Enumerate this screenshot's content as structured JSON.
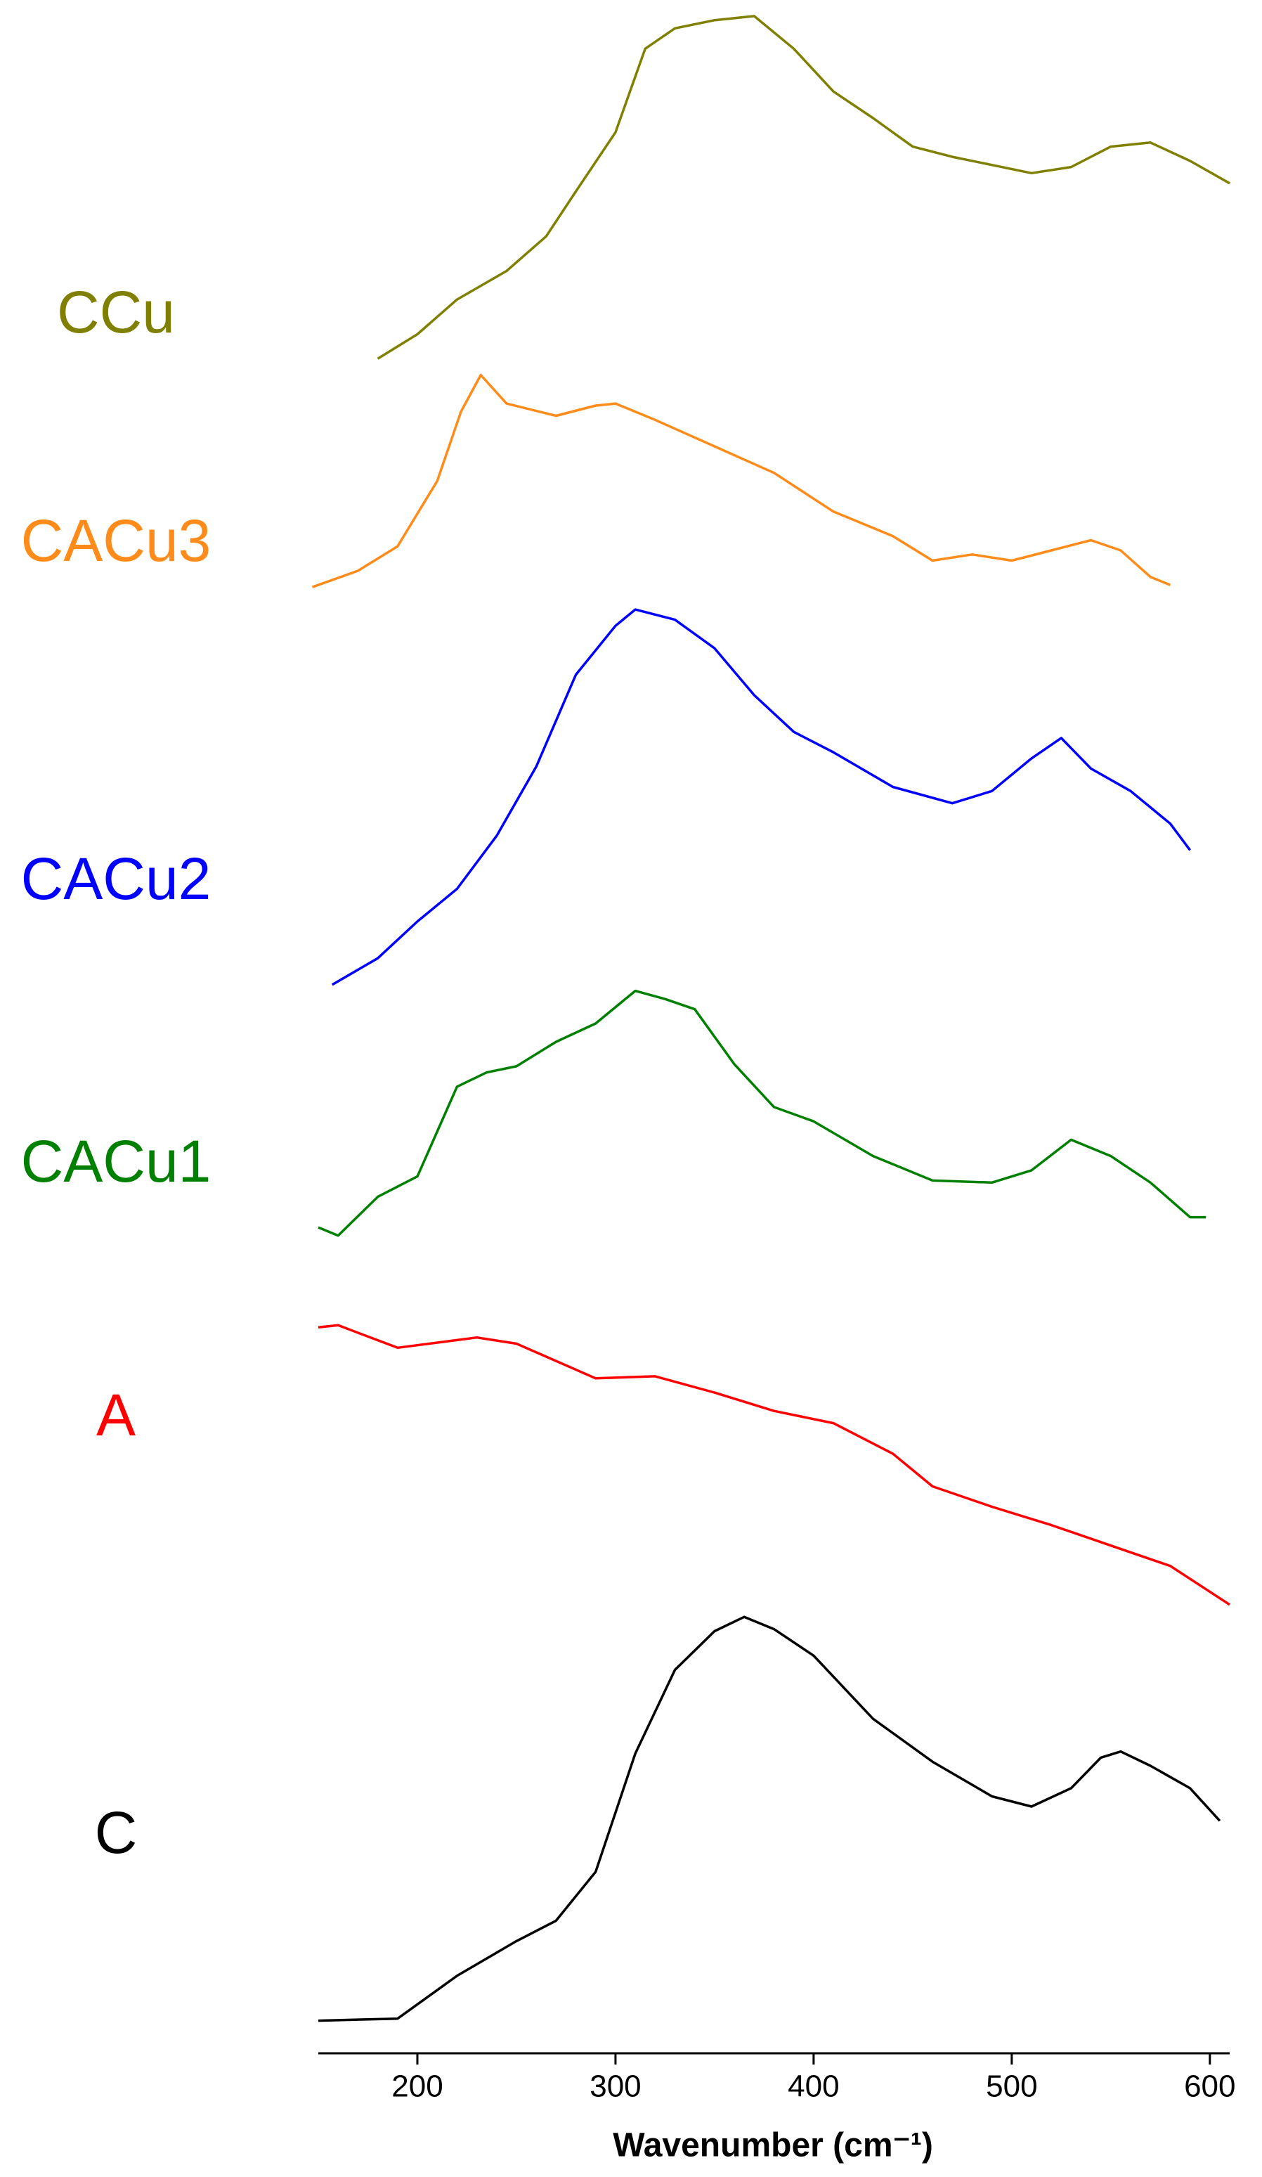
{
  "chart_data": {
    "type": "line",
    "x_label": "Wavenumber (cm⁻¹)",
    "xlim": [
      150,
      610
    ],
    "xticks": [
      200,
      300,
      400,
      500,
      600
    ],
    "ylim": [
      0,
      100
    ],
    "series": [
      {
        "name": "C",
        "color": "#000000",
        "x": [
          150,
          190,
          220,
          250,
          270,
          290,
          310,
          330,
          350,
          365,
          380,
          400,
          430,
          460,
          490,
          510,
          530,
          545,
          555,
          570,
          590,
          605
        ],
        "values": [
          1.6,
          1.7,
          3.8,
          5.5,
          6.5,
          8.9,
          14.7,
          18.8,
          20.7,
          21.4,
          20.8,
          19.5,
          16.4,
          14.3,
          12.6,
          12.1,
          13.0,
          14.5,
          14.8,
          14.1,
          13.0,
          11.4
        ]
      },
      {
        "name": "A",
        "color": "#ff0000",
        "x": [
          150,
          160,
          190,
          230,
          250,
          290,
          320,
          350,
          380,
          410,
          440,
          460,
          490,
          520,
          550,
          580,
          610
        ],
        "values": [
          35.6,
          35.7,
          34.6,
          35.1,
          34.8,
          33.1,
          33.2,
          32.4,
          31.5,
          30.9,
          29.4,
          27.8,
          26.8,
          25.9,
          24.9,
          23.9,
          22.0
        ]
      },
      {
        "name": "CACu1",
        "color": "#008000",
        "x": [
          150,
          160,
          180,
          200,
          220,
          235,
          250,
          270,
          290,
          310,
          325,
          340,
          360,
          380,
          400,
          430,
          460,
          490,
          510,
          530,
          550,
          570,
          590,
          598
        ],
        "values": [
          40.5,
          40.1,
          42.0,
          43.0,
          47.4,
          48.1,
          48.4,
          49.6,
          50.5,
          52.1,
          51.7,
          51.2,
          48.5,
          46.4,
          45.7,
          44.0,
          42.8,
          42.7,
          43.3,
          44.8,
          44.0,
          42.7,
          41.0,
          41.0
        ]
      },
      {
        "name": "CACu2",
        "color": "#0000ff",
        "x": [
          157,
          180,
          200,
          220,
          240,
          260,
          280,
          300,
          310,
          330,
          350,
          370,
          390,
          410,
          440,
          470,
          490,
          510,
          525,
          540,
          560,
          580,
          590
        ],
        "values": [
          52.4,
          53.7,
          55.5,
          57.1,
          59.7,
          63.1,
          67.6,
          70.0,
          70.8,
          70.3,
          68.9,
          66.6,
          64.8,
          63.8,
          62.1,
          61.3,
          61.9,
          63.5,
          64.5,
          63.0,
          61.9,
          60.3,
          59.0
        ]
      },
      {
        "name": "CACu3",
        "color": "#ff8c1a",
        "x": [
          147,
          170,
          190,
          210,
          222,
          232,
          245,
          270,
          290,
          300,
          320,
          350,
          380,
          410,
          440,
          460,
          480,
          500,
          520,
          540,
          555,
          570,
          580
        ],
        "values": [
          71.9,
          72.7,
          73.9,
          77.1,
          80.5,
          82.3,
          80.9,
          80.3,
          80.8,
          80.9,
          80.1,
          78.8,
          77.5,
          75.6,
          74.4,
          73.2,
          73.5,
          73.2,
          73.7,
          74.2,
          73.7,
          72.4,
          72.0
        ]
      },
      {
        "name": "CCu",
        "color": "#808000",
        "x": [
          180,
          200,
          220,
          245,
          265,
          280,
          300,
          315,
          330,
          350,
          370,
          390,
          410,
          430,
          450,
          470,
          490,
          510,
          530,
          550,
          570,
          590,
          610
        ],
        "values": [
          83.1,
          84.3,
          86.0,
          87.4,
          89.1,
          91.3,
          94.2,
          98.3,
          99.3,
          99.7,
          99.9,
          98.3,
          96.2,
          94.9,
          93.5,
          93.0,
          92.6,
          92.2,
          92.5,
          93.5,
          93.7,
          92.8,
          91.7
        ]
      }
    ]
  }
}
